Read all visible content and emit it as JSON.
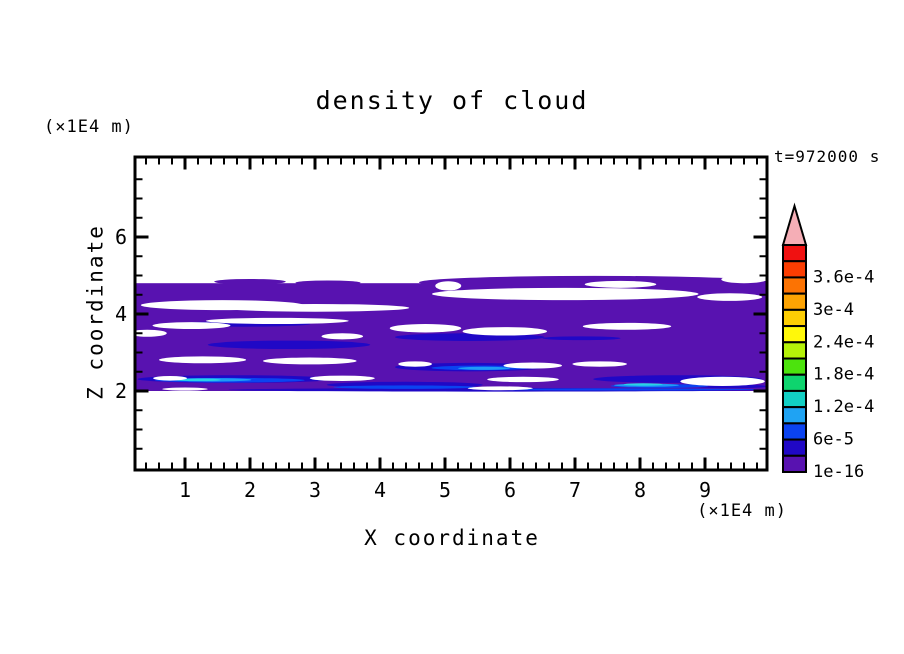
{
  "chart_data": {
    "type": "heatmap",
    "title": "density of cloud",
    "xlabel": "X coordinate",
    "ylabel": "Z coordinate",
    "x_unit": "(×1E4 m)",
    "y_unit": "(×1E4 m)",
    "time_label": "t=972000 s",
    "background_color": "#ffffff",
    "axis_color": "#000000",
    "x_range": [
      0.23,
      9.95
    ],
    "z_range": [
      0,
      8.08
    ],
    "x_major_ticks": [
      1,
      2,
      3,
      4,
      5,
      6,
      7,
      8,
      9
    ],
    "x_minor_step": 0.2,
    "z_major_ticks": [
      2,
      4,
      6
    ],
    "z_minor_step": 0.5,
    "grid": false,
    "colorbar": {
      "position": "right",
      "min_label": "1e-16",
      "step_value": "3e-5",
      "labels_top_to_bottom": [
        "3.6e-4",
        "3e-4",
        "2.4e-4",
        "1.8e-4",
        "1.2e-4",
        "6e-5",
        "1e-16"
      ],
      "cell_colors_top_to_bottom": [
        "#F01111",
        "#FB3D02",
        "#FC7303",
        "#FDA303",
        "#FDCE04",
        "#FFF80A",
        "#B5F209",
        "#4CE30D",
        "#0ED46E",
        "#12CFC4",
        "#1FA3F3",
        "#0B43F0",
        "#2008C6",
        "#5812B0"
      ],
      "overflow_triangle_color": "#F5AEB6"
    },
    "palette": {
      "base_violet": "#5812B0",
      "navy": "#2008C6",
      "blue": "#0B43F0",
      "light_blue": "#1F9BF5",
      "cyan": "#28D4E6",
      "gap_white": "#FFFFFF"
    },
    "cloud_band": {
      "x_min": 0.23,
      "x_max": 9.95,
      "z_min": 2.0,
      "z_max": 4.8,
      "upper_strip": [
        7.3,
        4.82,
        2.7,
        0.17
      ],
      "top_bumps": [
        [
          2.0,
          4.84,
          0.55,
          0.07
        ],
        [
          3.2,
          4.81,
          0.5,
          0.06
        ]
      ],
      "navy_streaks": [
        [
          1.88,
          3.74,
          1.05,
          0.07
        ],
        [
          2.6,
          3.2,
          1.25,
          0.11
        ],
        [
          5.38,
          3.4,
          1.15,
          0.1
        ],
        [
          7.1,
          3.37,
          0.6,
          0.05
        ],
        [
          5.38,
          2.62,
          1.15,
          0.11
        ],
        [
          1.77,
          2.31,
          1.5,
          0.1
        ],
        [
          4.38,
          2.16,
          1.2,
          0.08
        ],
        [
          8.58,
          2.31,
          1.3,
          0.1
        ],
        [
          5.77,
          2.03,
          4.1,
          0.045
        ],
        [
          9.4,
          2.12,
          0.55,
          0.05
        ]
      ],
      "blue_streaks": [
        [
          1.69,
          2.28,
          1.15,
          0.06
        ],
        [
          4.38,
          2.1,
          1.1,
          0.045
        ],
        [
          5.54,
          2.6,
          0.75,
          0.06
        ],
        [
          8.3,
          2.13,
          0.75,
          0.05
        ],
        [
          7.7,
          2.04,
          2.1,
          0.028
        ]
      ],
      "light_blue_streaks": [
        [
          1.42,
          2.29,
          0.6,
          0.045
        ],
        [
          5.6,
          2.59,
          0.4,
          0.04
        ],
        [
          8.1,
          2.15,
          0.5,
          0.04
        ]
      ],
      "cyan_streaks": [
        [
          1.2,
          2.29,
          0.35,
          0.035
        ],
        [
          8.05,
          2.17,
          0.3,
          0.03
        ]
      ],
      "white_gaps": [
        [
          1.57,
          4.23,
          1.25,
          0.13
        ],
        [
          3.0,
          4.16,
          1.45,
          0.1
        ],
        [
          6.85,
          4.52,
          2.05,
          0.16
        ],
        [
          9.38,
          4.44,
          0.5,
          0.1
        ],
        [
          7.7,
          4.77,
          0.55,
          0.09
        ],
        [
          5.05,
          4.73,
          0.2,
          0.12
        ],
        [
          9.6,
          4.9,
          0.35,
          0.1
        ],
        [
          1.1,
          3.7,
          0.6,
          0.09
        ],
        [
          2.42,
          3.82,
          1.1,
          0.08
        ],
        [
          4.7,
          3.63,
          0.55,
          0.11
        ],
        [
          5.92,
          3.55,
          0.65,
          0.11
        ],
        [
          7.8,
          3.68,
          0.68,
          0.09
        ],
        [
          0.42,
          3.5,
          0.3,
          0.09
        ],
        [
          3.42,
          3.42,
          0.32,
          0.08
        ],
        [
          1.27,
          2.81,
          0.67,
          0.09
        ],
        [
          2.92,
          2.78,
          0.72,
          0.09
        ],
        [
          4.54,
          2.7,
          0.26,
          0.07
        ],
        [
          6.35,
          2.66,
          0.45,
          0.08
        ],
        [
          7.38,
          2.7,
          0.42,
          0.07
        ],
        [
          0.77,
          2.33,
          0.26,
          0.06
        ],
        [
          3.42,
          2.33,
          0.5,
          0.07
        ],
        [
          6.2,
          2.3,
          0.55,
          0.07
        ],
        [
          9.27,
          2.25,
          0.65,
          0.12
        ],
        [
          5.85,
          2.07,
          0.5,
          0.05
        ],
        [
          1.0,
          2.05,
          0.35,
          0.04
        ]
      ]
    }
  }
}
